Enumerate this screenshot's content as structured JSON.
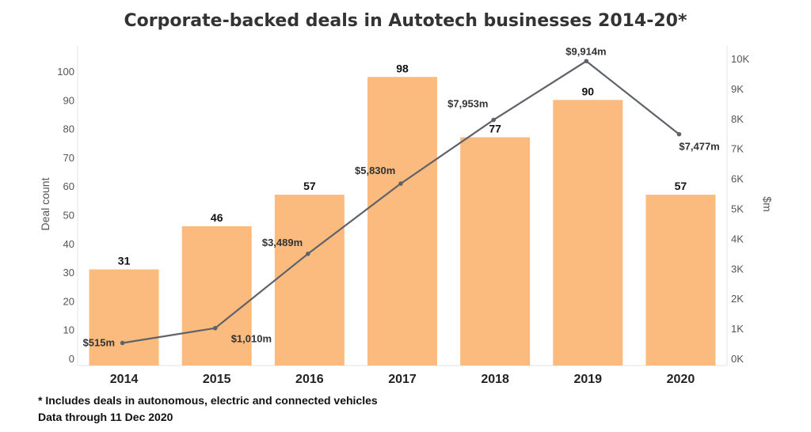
{
  "chart_data": {
    "type": "bar",
    "title": "Corporate-backed deals in Autotech businesses 2014-20*",
    "categories": [
      "2014",
      "2015",
      "2016",
      "2017",
      "2018",
      "2019",
      "2020"
    ],
    "series": [
      {
        "type": "bar",
        "axis": "left",
        "values": [
          31,
          46,
          57,
          98,
          77,
          90,
          57
        ],
        "labels": [
          "31",
          "46",
          "57",
          "98",
          "77",
          "90",
          "57"
        ],
        "color": "#fbbb7e"
      },
      {
        "type": "line",
        "axis": "right",
        "values": [
          515,
          1010,
          3489,
          5830,
          7953,
          9914,
          7477
        ],
        "labels": [
          "$515m",
          "$1,010m",
          "$3,489m",
          "$5,830m",
          "$7,953m",
          "$9,914m",
          "$7,477m"
        ],
        "color": "#5f6369"
      }
    ],
    "ylabel": "Deal count",
    "ylim": [
      0,
      100
    ],
    "y_ticks": [
      "0",
      "10",
      "20",
      "30",
      "40",
      "50",
      "60",
      "70",
      "80",
      "90",
      "100"
    ],
    "y2label": "$m",
    "y2lim": [
      0,
      10000
    ],
    "y2_ticks": [
      "0K",
      "1K",
      "2K",
      "3K",
      "4K",
      "5K",
      "6K",
      "7K",
      "8K",
      "9K",
      "10K"
    ],
    "grid": false
  },
  "footnotes": [
    "* Includes deals in autonomous, electric and connected vehicles",
    "Data through 11 Dec 2020"
  ]
}
